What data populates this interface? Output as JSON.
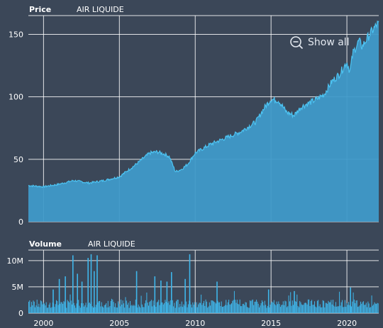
{
  "price_panel": {
    "title": "Price",
    "instrument": "AIR LIQUIDE"
  },
  "volume_panel": {
    "title": "Volume",
    "instrument": "AIR LIQUIDE"
  },
  "show_all": {
    "label": "Show all",
    "icon": "zoom-out-icon"
  },
  "colors": {
    "background": "#3b4758",
    "fill": "#3f9ac9",
    "line": "#4cc3f2",
    "volume_bar": "#3fb6ea"
  },
  "chart_data": [
    {
      "type": "area",
      "title": "Price",
      "series": [
        {
          "name": "AIR LIQUIDE"
        }
      ],
      "x_years": [
        1999.0,
        2000.0,
        2001.0,
        2002.0,
        2003.0,
        2004.0,
        2005.0,
        2006.0,
        2006.5,
        2007.0,
        2007.5,
        2008.0,
        2008.3,
        2008.7,
        2009.1,
        2009.5,
        2010.0,
        2011.0,
        2012.0,
        2013.0,
        2014.0,
        2014.6,
        2015.0,
        2015.5,
        2016.0,
        2016.5,
        2017.0,
        2017.5,
        2018.0,
        2018.5,
        2019.0,
        2019.5,
        2020.0,
        2020.2,
        2020.4,
        2020.8,
        2021.0,
        2021.5,
        2022.0
      ],
      "values": [
        29,
        28,
        30,
        33,
        31,
        33,
        36,
        45,
        50,
        55,
        56,
        54,
        52,
        40,
        42,
        46,
        55,
        62,
        67,
        72,
        80,
        92,
        98,
        97,
        88,
        85,
        92,
        95,
        98,
        102,
        112,
        118,
        128,
        120,
        135,
        145,
        140,
        150,
        158
      ],
      "xticks": [
        "2000",
        "2005",
        "2010",
        "2015",
        "2020"
      ],
      "yticks": [
        "0",
        "50",
        "100",
        "150"
      ],
      "ylim": [
        0,
        165
      ],
      "xlim": [
        1999.0,
        2022.1
      ],
      "grid": true
    },
    {
      "type": "bar",
      "title": "Volume",
      "series": [
        {
          "name": "AIR LIQUIDE"
        }
      ],
      "baseline_band_millions": [
        1.0,
        2.6
      ],
      "spikes": [
        {
          "x": 2000.6,
          "value_millions": 4.5
        },
        {
          "x": 2001.0,
          "value_millions": 6.5
        },
        {
          "x": 2001.4,
          "value_millions": 7.0
        },
        {
          "x": 2001.9,
          "value_millions": 11.0
        },
        {
          "x": 2002.2,
          "value_millions": 7.5
        },
        {
          "x": 2002.5,
          "value_millions": 6.0
        },
        {
          "x": 2002.9,
          "value_millions": 10.5
        },
        {
          "x": 2003.1,
          "value_millions": 11.2
        },
        {
          "x": 2003.3,
          "value_millions": 8.0
        },
        {
          "x": 2003.5,
          "value_millions": 11.0
        },
        {
          "x": 2006.1,
          "value_millions": 8.0
        },
        {
          "x": 2007.3,
          "value_millions": 7.0
        },
        {
          "x": 2007.7,
          "value_millions": 6.2
        },
        {
          "x": 2008.1,
          "value_millions": 6.0
        },
        {
          "x": 2008.4,
          "value_millions": 7.8
        },
        {
          "x": 2009.3,
          "value_millions": 6.5
        },
        {
          "x": 2009.6,
          "value_millions": 11.2
        },
        {
          "x": 2011.4,
          "value_millions": 6.0
        },
        {
          "x": 2014.8,
          "value_millions": 4.5
        },
        {
          "x": 2016.5,
          "value_millions": 4.2
        },
        {
          "x": 2020.2,
          "value_millions": 4.9
        }
      ],
      "xticks": [
        "2000",
        "2005",
        "2010",
        "2015",
        "2020"
      ],
      "yticks": [
        "0",
        "5M",
        "10M"
      ],
      "ylim": [
        0,
        12
      ],
      "xlim": [
        1999.0,
        2022.1
      ],
      "grid": true
    }
  ]
}
